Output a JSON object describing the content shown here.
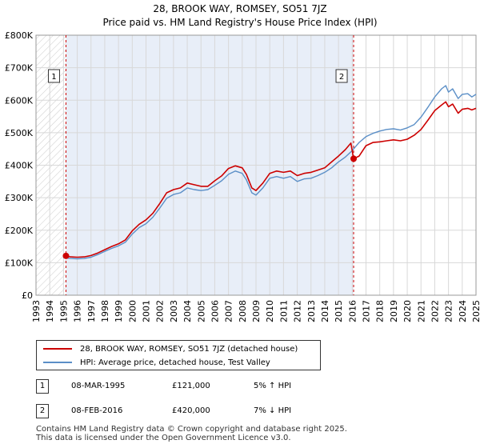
{
  "chart_data": {
    "type": "line",
    "title": "28, BROOK WAY, ROMSEY, SO51 7JZ",
    "subtitle": "Price paid vs. HM Land Registry's House Price Index (HPI)",
    "x_ticks": [
      "1993",
      "1994",
      "1995",
      "1996",
      "1997",
      "1998",
      "1999",
      "2000",
      "2001",
      "2002",
      "2003",
      "2004",
      "2005",
      "2006",
      "2007",
      "2008",
      "2009",
      "2010",
      "2011",
      "2012",
      "2013",
      "2014",
      "2015",
      "2016",
      "2017",
      "2018",
      "2019",
      "2020",
      "2021",
      "2022",
      "2023",
      "2024",
      "2025"
    ],
    "y_ticks": [
      "£0",
      "£100K",
      "£200K",
      "£300K",
      "£400K",
      "£500K",
      "£600K",
      "£700K",
      "£800K"
    ],
    "xlim": [
      1993,
      2025
    ],
    "ylim": [
      0,
      800000
    ],
    "series": [
      {
        "name": "28, BROOK WAY, ROMSEY, SO51 7JZ (detached house)",
        "color": "#cc0000",
        "points": [
          [
            1995.18,
            121000
          ],
          [
            1995.5,
            118000
          ],
          [
            1996.0,
            117000
          ],
          [
            1996.5,
            118000
          ],
          [
            1997.0,
            122000
          ],
          [
            1997.5,
            130000
          ],
          [
            1998.0,
            140000
          ],
          [
            1998.5,
            150000
          ],
          [
            1999.0,
            158000
          ],
          [
            1999.5,
            170000
          ],
          [
            2000.0,
            198000
          ],
          [
            2000.5,
            218000
          ],
          [
            2001.0,
            232000
          ],
          [
            2001.5,
            252000
          ],
          [
            2002.0,
            282000
          ],
          [
            2002.5,
            315000
          ],
          [
            2003.0,
            325000
          ],
          [
            2003.5,
            330000
          ],
          [
            2004.0,
            345000
          ],
          [
            2004.5,
            340000
          ],
          [
            2005.0,
            335000
          ],
          [
            2005.5,
            335000
          ],
          [
            2006.0,
            352000
          ],
          [
            2006.5,
            367000
          ],
          [
            2007.0,
            390000
          ],
          [
            2007.5,
            398000
          ],
          [
            2008.0,
            392000
          ],
          [
            2008.3,
            372000
          ],
          [
            2008.7,
            330000
          ],
          [
            2009.0,
            322000
          ],
          [
            2009.5,
            345000
          ],
          [
            2010.0,
            375000
          ],
          [
            2010.5,
            382000
          ],
          [
            2011.0,
            378000
          ],
          [
            2011.5,
            382000
          ],
          [
            2012.0,
            368000
          ],
          [
            2012.5,
            375000
          ],
          [
            2013.0,
            378000
          ],
          [
            2013.5,
            385000
          ],
          [
            2014.0,
            392000
          ],
          [
            2014.5,
            410000
          ],
          [
            2015.0,
            428000
          ],
          [
            2015.5,
            448000
          ],
          [
            2015.9,
            468000
          ],
          [
            2016.1,
            420000
          ],
          [
            2016.5,
            428000
          ],
          [
            2017.0,
            460000
          ],
          [
            2017.5,
            470000
          ],
          [
            2018.0,
            472000
          ],
          [
            2018.5,
            475000
          ],
          [
            2019.0,
            478000
          ],
          [
            2019.5,
            475000
          ],
          [
            2020.0,
            480000
          ],
          [
            2020.5,
            492000
          ],
          [
            2021.0,
            510000
          ],
          [
            2021.5,
            538000
          ],
          [
            2022.0,
            568000
          ],
          [
            2022.5,
            585000
          ],
          [
            2022.8,
            595000
          ],
          [
            2023.0,
            580000
          ],
          [
            2023.3,
            588000
          ],
          [
            2023.7,
            560000
          ],
          [
            2024.0,
            572000
          ],
          [
            2024.4,
            575000
          ],
          [
            2024.7,
            570000
          ],
          [
            2025.0,
            575000
          ]
        ]
      },
      {
        "name": "HPI: Average price, detached house, Test Valley",
        "color": "#5b8fc7",
        "points": [
          [
            1995.0,
            115000
          ],
          [
            1995.5,
            113000
          ],
          [
            1996.0,
            112000
          ],
          [
            1996.5,
            113000
          ],
          [
            1997.0,
            117000
          ],
          [
            1997.5,
            125000
          ],
          [
            1998.0,
            135000
          ],
          [
            1998.5,
            144000
          ],
          [
            1999.0,
            152000
          ],
          [
            1999.5,
            163000
          ],
          [
            2000.0,
            188000
          ],
          [
            2000.5,
            208000
          ],
          [
            2001.0,
            220000
          ],
          [
            2001.5,
            240000
          ],
          [
            2002.0,
            268000
          ],
          [
            2002.5,
            298000
          ],
          [
            2003.0,
            310000
          ],
          [
            2003.5,
            315000
          ],
          [
            2004.0,
            330000
          ],
          [
            2004.5,
            325000
          ],
          [
            2005.0,
            322000
          ],
          [
            2005.5,
            325000
          ],
          [
            2006.0,
            338000
          ],
          [
            2006.5,
            352000
          ],
          [
            2007.0,
            372000
          ],
          [
            2007.5,
            382000
          ],
          [
            2008.0,
            375000
          ],
          [
            2008.3,
            355000
          ],
          [
            2008.7,
            315000
          ],
          [
            2009.0,
            308000
          ],
          [
            2009.5,
            330000
          ],
          [
            2010.0,
            360000
          ],
          [
            2010.5,
            365000
          ],
          [
            2011.0,
            360000
          ],
          [
            2011.5,
            365000
          ],
          [
            2012.0,
            350000
          ],
          [
            2012.5,
            358000
          ],
          [
            2013.0,
            360000
          ],
          [
            2013.5,
            368000
          ],
          [
            2014.0,
            378000
          ],
          [
            2014.5,
            392000
          ],
          [
            2015.0,
            410000
          ],
          [
            2015.5,
            425000
          ],
          [
            2016.0,
            445000
          ],
          [
            2016.5,
            470000
          ],
          [
            2017.0,
            488000
          ],
          [
            2017.5,
            498000
          ],
          [
            2018.0,
            505000
          ],
          [
            2018.5,
            510000
          ],
          [
            2019.0,
            512000
          ],
          [
            2019.5,
            508000
          ],
          [
            2020.0,
            515000
          ],
          [
            2020.5,
            525000
          ],
          [
            2021.0,
            548000
          ],
          [
            2021.5,
            578000
          ],
          [
            2022.0,
            610000
          ],
          [
            2022.5,
            635000
          ],
          [
            2022.8,
            645000
          ],
          [
            2023.0,
            625000
          ],
          [
            2023.3,
            635000
          ],
          [
            2023.7,
            605000
          ],
          [
            2024.0,
            618000
          ],
          [
            2024.4,
            620000
          ],
          [
            2024.7,
            610000
          ],
          [
            2025.0,
            618000
          ]
        ]
      }
    ],
    "sales": [
      {
        "label": "1",
        "date": "08-MAR-1995",
        "price": "£121,000",
        "hpi": "5% ↑ HPI",
        "x": 1995.18,
        "y": 121000
      },
      {
        "label": "2",
        "date": "08-FEB-2016",
        "price": "£420,000",
        "hpi": "7% ↓ HPI",
        "x": 2016.1,
        "y": 420000
      }
    ],
    "shaded_region": [
      1993,
      1995.18
    ],
    "grid": true
  },
  "footer": {
    "line1": "Contains HM Land Registry data © Crown copyright and database right 2025.",
    "line2": "This data is licensed under the Open Government Licence v3.0."
  }
}
